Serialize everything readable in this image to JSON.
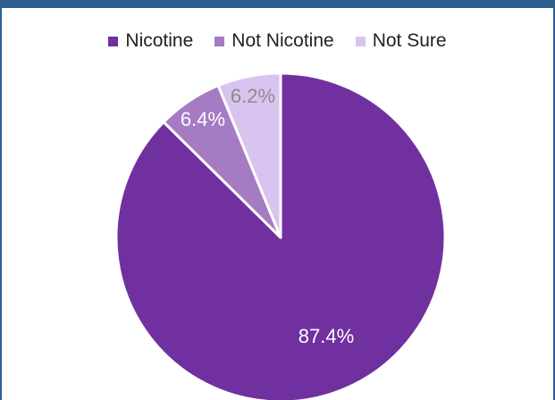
{
  "chart_data": {
    "type": "pie",
    "title": "",
    "legend_position": "top",
    "slices": [
      {
        "name": "Nicotine",
        "value": 87.4,
        "label": "87.4%",
        "color": "#7030a0",
        "label_color": "#ffffff"
      },
      {
        "name": "Not Nicotine",
        "value": 6.4,
        "label": "6.4%",
        "color": "#a57bc3",
        "label_color": "#ffffff"
      },
      {
        "name": "Not Sure",
        "value": 6.2,
        "label": "6.2%",
        "color": "#d9c3ef",
        "label_color": "#8c8c8c"
      }
    ]
  }
}
